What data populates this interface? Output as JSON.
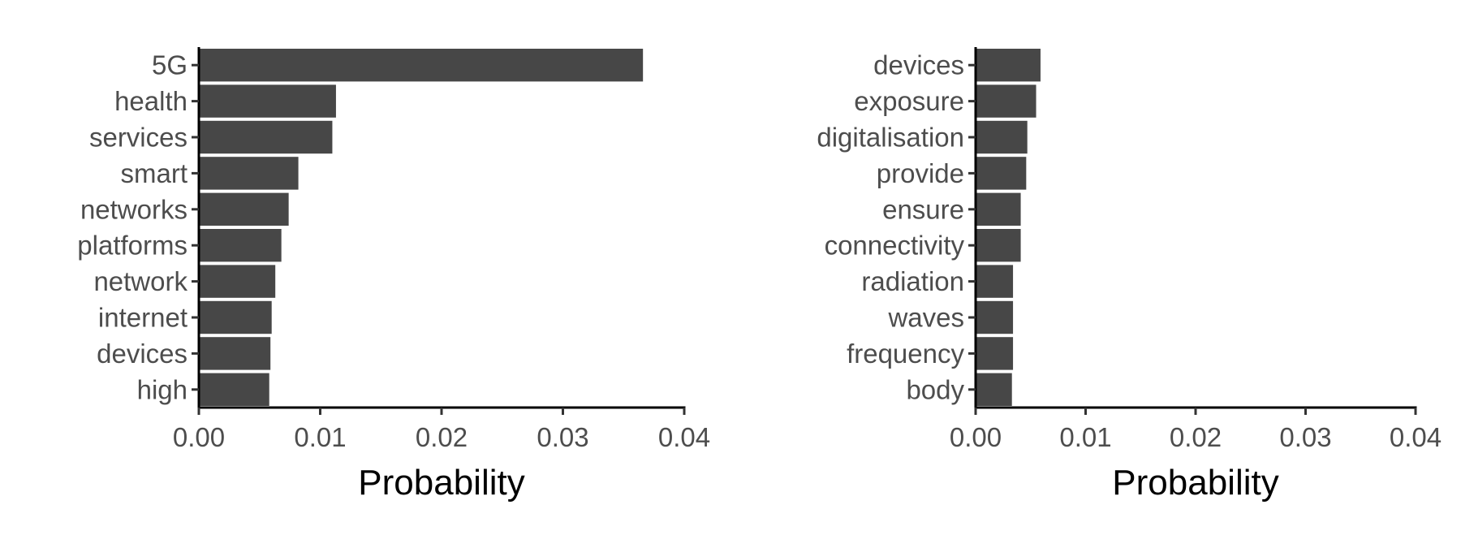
{
  "chart_data": [
    {
      "type": "bar",
      "orientation": "horizontal",
      "categories": [
        "5G",
        "health",
        "services",
        "smart",
        "networks",
        "platforms",
        "network",
        "internet",
        "devices",
        "high"
      ],
      "values": [
        0.0366,
        0.0113,
        0.011,
        0.0082,
        0.0074,
        0.0068,
        0.0063,
        0.006,
        0.0059,
        0.0058
      ],
      "xlabel": "Probability",
      "ylabel": "",
      "xlim": [
        0,
        0.04
      ],
      "xticks": [
        "0.00",
        "0.01",
        "0.02",
        "0.03",
        "0.04"
      ],
      "bar_color": "#474747",
      "grid": false
    },
    {
      "type": "bar",
      "orientation": "horizontal",
      "categories": [
        "devices",
        "exposure",
        "digitalisation",
        "provide",
        "ensure",
        "connectivity",
        "radiation",
        "waves",
        "frequency",
        "body"
      ],
      "values": [
        0.0059,
        0.0055,
        0.0047,
        0.0046,
        0.0041,
        0.0041,
        0.0034,
        0.0034,
        0.0034,
        0.0033
      ],
      "xlabel": "Probability",
      "ylabel": "",
      "xlim": [
        0,
        0.04
      ],
      "xticks": [
        "0.00",
        "0.01",
        "0.02",
        "0.03",
        "0.04"
      ],
      "bar_color": "#474747",
      "grid": false
    }
  ]
}
